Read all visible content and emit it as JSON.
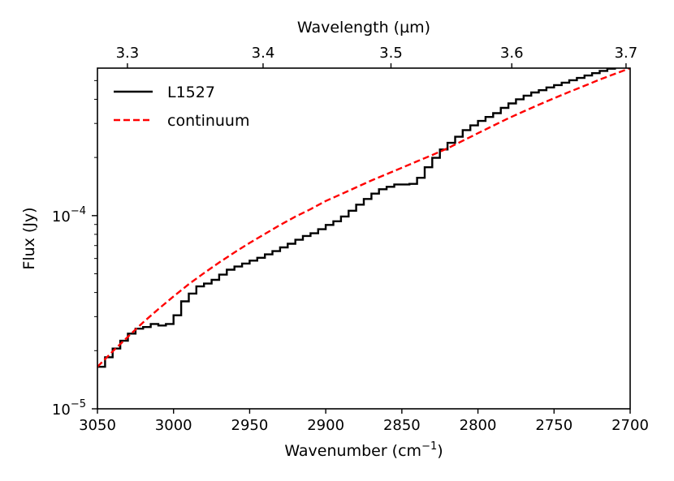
{
  "chart_data": {
    "type": "line",
    "xlabel_top": "Wavelength (µm)",
    "xlabel_main": "Wavenumber (cm",
    "xlabel_sup": "−1",
    "xlabel_close": ")",
    "ylabel": "Flux (Jy)",
    "x_bottom": {
      "range": [
        3050,
        2700
      ],
      "ticks": [
        3050,
        3000,
        2950,
        2900,
        2850,
        2800,
        2750,
        2700
      ],
      "tick_labels": [
        "3050",
        "3000",
        "2950",
        "2900",
        "2850",
        "2800",
        "2750",
        "2700"
      ]
    },
    "x_top": {
      "ticks_um": [
        3.3,
        3.4,
        3.5,
        3.6,
        3.7
      ],
      "tick_labels": [
        "3.3",
        "3.4",
        "3.5",
        "3.6",
        "3.7"
      ]
    },
    "y": {
      "scale": "log",
      "range": [
        1e-05,
        0.00058
      ],
      "major_ticks": [
        1e-05,
        0.0001
      ],
      "major_labels": [
        {
          "base": "10",
          "exp": "−5"
        },
        {
          "base": "10",
          "exp": "−4"
        }
      ]
    },
    "legend": {
      "placement": "top-left",
      "entries": [
        "L1527",
        "continuum"
      ]
    },
    "series": [
      {
        "name": "L1527",
        "color": "#000000",
        "style": "steps",
        "x": [
          3050,
          3045,
          3040,
          3035,
          3030,
          3025,
          3020,
          3015,
          3010,
          3005,
          3000,
          2995,
          2990,
          2985,
          2980,
          2975,
          2970,
          2965,
          2960,
          2955,
          2950,
          2945,
          2940,
          2935,
          2930,
          2925,
          2920,
          2915,
          2910,
          2905,
          2900,
          2895,
          2890,
          2885,
          2880,
          2875,
          2870,
          2865,
          2860,
          2855,
          2850,
          2845,
          2840,
          2835,
          2830,
          2825,
          2820,
          2815,
          2810,
          2805,
          2800,
          2795,
          2790,
          2785,
          2780,
          2775,
          2770,
          2765,
          2760,
          2755,
          2750,
          2745,
          2740,
          2735,
          2730,
          2725,
          2720,
          2715,
          2710,
          2705,
          2700
        ],
        "y": [
          1.65e-05,
          1.85e-05,
          2.05e-05,
          2.25e-05,
          2.45e-05,
          2.6e-05,
          2.65e-05,
          2.75e-05,
          2.7e-05,
          2.75e-05,
          3.05e-05,
          3.6e-05,
          3.95e-05,
          4.3e-05,
          4.45e-05,
          4.65e-05,
          4.95e-05,
          5.25e-05,
          5.45e-05,
          5.65e-05,
          5.85e-05,
          6.05e-05,
          6.3e-05,
          6.55e-05,
          6.85e-05,
          7.15e-05,
          7.5e-05,
          7.85e-05,
          8.1e-05,
          8.5e-05,
          8.95e-05,
          9.35e-05,
          9.9e-05,
          0.000106,
          0.000114,
          0.000122,
          0.00013,
          0.000137,
          0.000141,
          0.000145,
          0.000145,
          0.000146,
          0.000157,
          0.000178,
          0.000199,
          0.00022,
          0.000238,
          0.000256,
          0.000277,
          0.000293,
          0.000309,
          0.000324,
          0.000339,
          0.000361,
          0.000381,
          0.0004,
          0.000418,
          0.000434,
          0.000446,
          0.000461,
          0.000474,
          0.000488,
          0.000502,
          0.000516,
          0.000531,
          0.000546,
          0.000561,
          0.000576,
          0.000591,
          0.000606,
          0.00062
        ]
      },
      {
        "name": "continuum",
        "color": "#ff0000",
        "style": "dashed",
        "x": [
          3050,
          3040,
          3030,
          3020,
          3010,
          3000,
          2990,
          2980,
          2970,
          2960,
          2950,
          2940,
          2930,
          2920,
          2910,
          2900,
          2890,
          2880,
          2870,
          2860,
          2850,
          2840,
          2830,
          2820,
          2810,
          2800,
          2790,
          2780,
          2770,
          2760,
          2750,
          2740,
          2730,
          2720,
          2710,
          2700
        ],
        "y": [
          1.65e-05,
          1.98e-05,
          2.36e-05,
          2.8e-05,
          3.28e-05,
          3.82e-05,
          4.42e-05,
          5.04e-05,
          5.72e-05,
          6.45e-05,
          7.22e-05,
          8.04e-05,
          8.94e-05,
          9.88e-05,
          0.000108,
          0.000119,
          0.000129,
          0.00014,
          0.000152,
          0.000164,
          0.000177,
          0.000191,
          0.000206,
          0.000223,
          0.000244,
          0.000267,
          0.000292,
          0.000319,
          0.000346,
          0.000375,
          0.000405,
          0.000437,
          0.00047,
          0.000506,
          0.000542,
          0.00058
        ]
      }
    ]
  }
}
